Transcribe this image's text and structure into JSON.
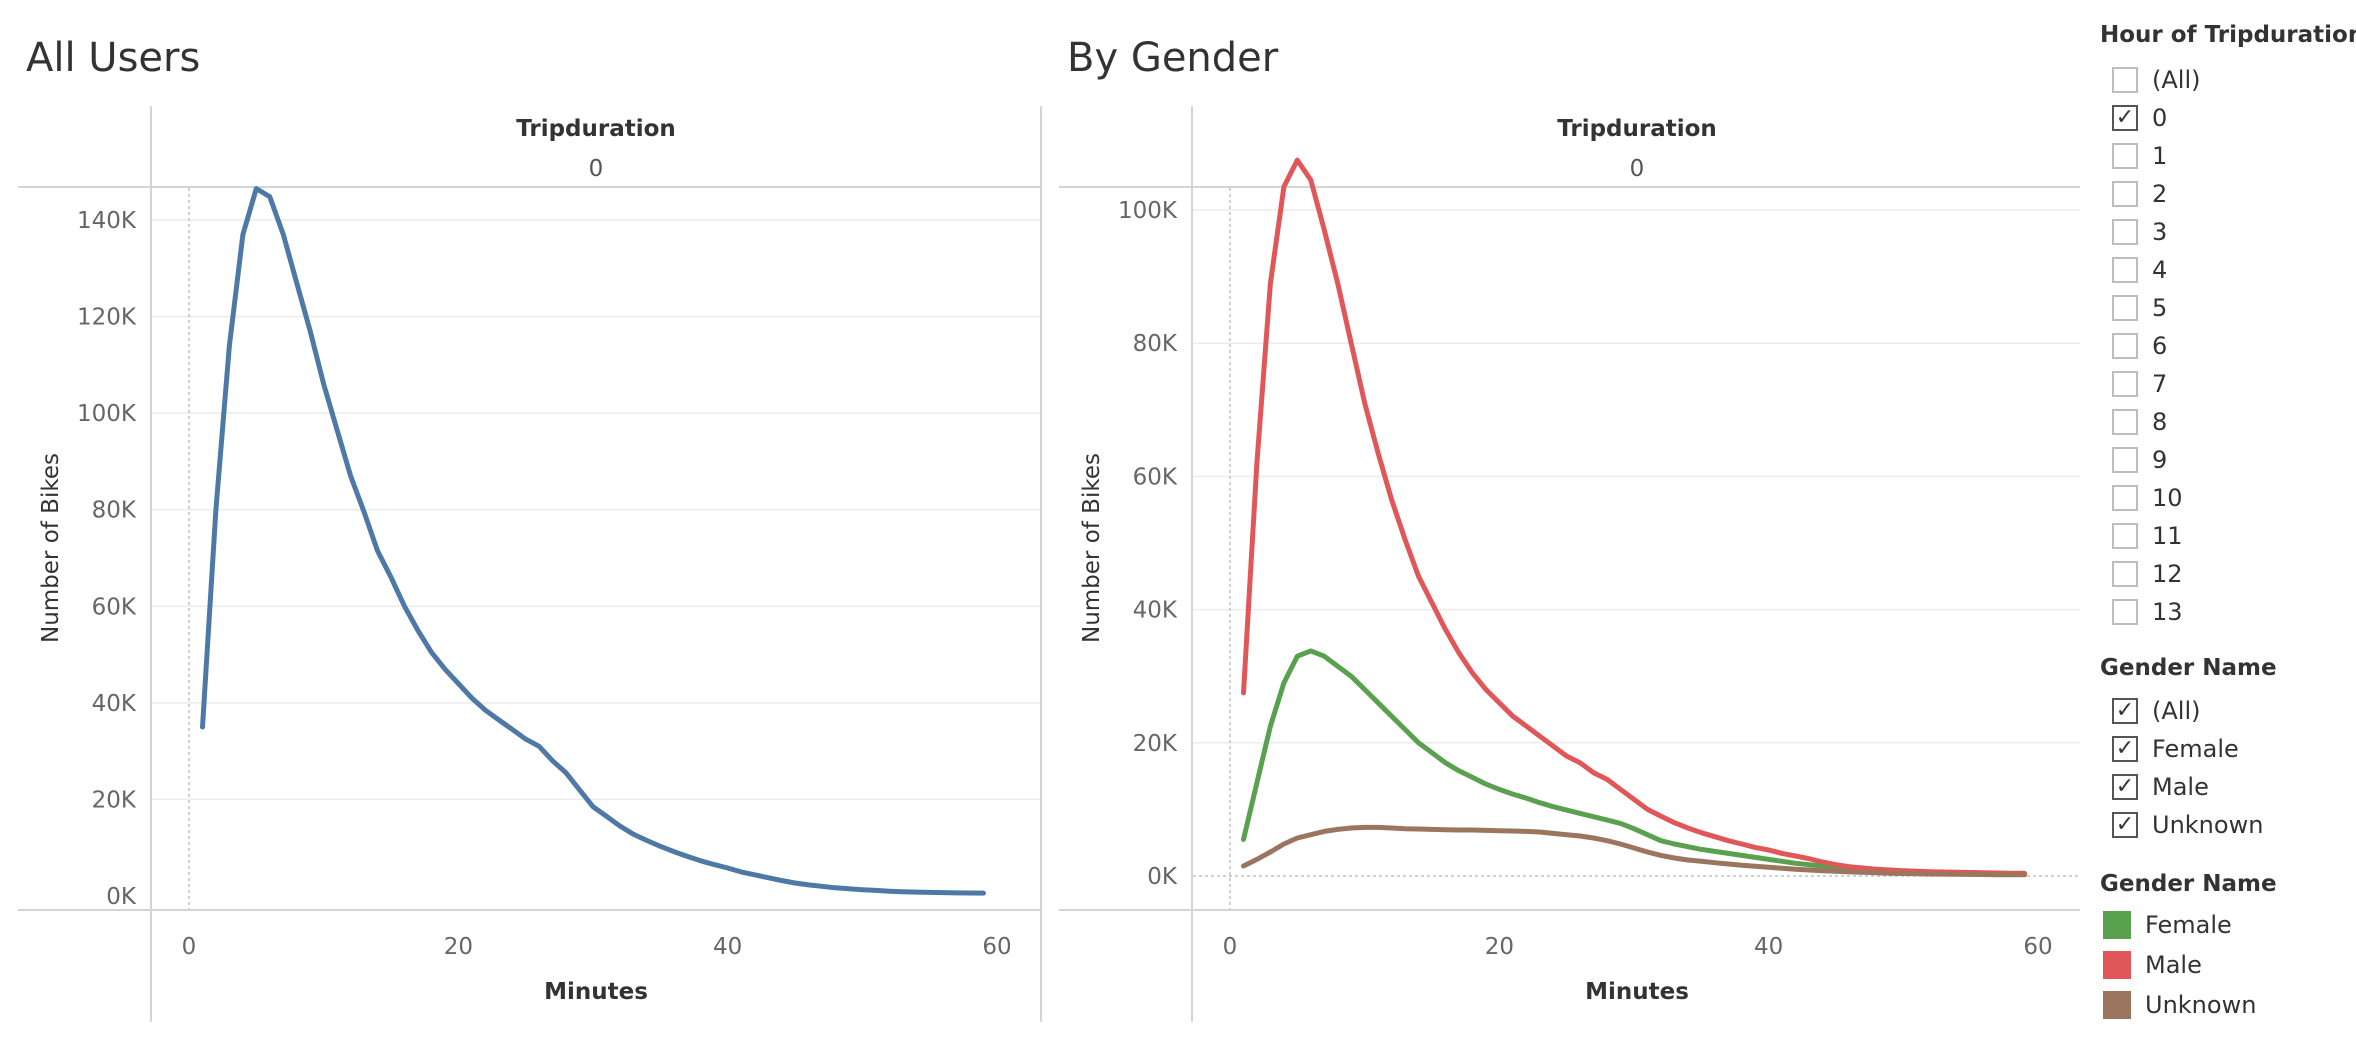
{
  "chart_data": [
    {
      "type": "line",
      "title": "All Users",
      "column_header": "Tripduration",
      "column_value": "0",
      "xlabel": "Minutes",
      "ylabel": "Number of Bikes",
      "xlim": [
        0,
        60
      ],
      "ylim": [
        0,
        150000
      ],
      "x_ticks": [
        0,
        20,
        40,
        60
      ],
      "x_tick_labels": [
        "0",
        "20",
        "40",
        "60"
      ],
      "y_ticks": [
        0,
        20000,
        40000,
        60000,
        80000,
        100000,
        120000,
        140000
      ],
      "y_tick_labels": [
        "0K",
        "20K",
        "40K",
        "60K",
        "80K",
        "100K",
        "120K",
        "140K"
      ],
      "grid": true,
      "series": [
        {
          "color": "#4E79A7",
          "x": [
            1,
            2,
            3,
            4,
            5,
            6,
            7,
            8,
            9,
            10,
            11,
            12,
            13,
            14,
            15,
            16,
            17,
            18,
            19,
            20,
            21,
            22,
            23,
            24,
            25,
            26,
            27,
            28,
            29,
            30,
            31,
            32,
            33,
            34,
            35,
            36,
            37,
            38,
            39,
            40,
            41,
            42,
            43,
            44,
            45,
            46,
            47,
            48,
            49,
            50,
            51,
            52,
            53,
            54,
            55,
            56,
            57,
            58,
            59
          ],
          "y": [
            35000,
            80000,
            114000,
            137000,
            146500,
            144800,
            137000,
            127000,
            117000,
            106000,
            96500,
            87000,
            79500,
            71500,
            66000,
            60000,
            55000,
            50500,
            47000,
            44000,
            41000,
            38500,
            36500,
            34500,
            32500,
            31000,
            28000,
            25500,
            22000,
            18500,
            16500,
            14500,
            12800,
            11500,
            10300,
            9200,
            8200,
            7300,
            6500,
            5800,
            5000,
            4400,
            3800,
            3200,
            2700,
            2300,
            2000,
            1700,
            1500,
            1300,
            1150,
            1000,
            900,
            800,
            750,
            700,
            650,
            620,
            600
          ]
        }
      ]
    },
    {
      "type": "line",
      "title": "By Gender",
      "column_header": "Tripduration",
      "column_value": "0",
      "xlabel": "Minutes",
      "ylabel": "Number of Bikes",
      "xlim": [
        0,
        60
      ],
      "ylim": [
        0,
        110000
      ],
      "x_ticks": [
        0,
        20,
        40,
        60
      ],
      "x_tick_labels": [
        "0",
        "20",
        "40",
        "60"
      ],
      "y_ticks": [
        0,
        20000,
        40000,
        60000,
        80000,
        100000
      ],
      "y_tick_labels": [
        "0K",
        "20K",
        "40K",
        "60K",
        "80K",
        "100K"
      ],
      "grid": true,
      "legend": "right",
      "series": [
        {
          "name": "Female",
          "color": "#59A14F",
          "x": [
            1,
            2,
            3,
            4,
            5,
            6,
            7,
            8,
            9,
            10,
            11,
            12,
            13,
            14,
            15,
            16,
            17,
            18,
            19,
            20,
            21,
            22,
            23,
            24,
            25,
            26,
            27,
            28,
            29,
            30,
            31,
            32,
            33,
            34,
            35,
            36,
            37,
            38,
            39,
            40,
            41,
            42,
            43,
            44,
            45,
            46,
            47,
            48,
            49,
            50,
            51,
            52,
            53,
            54,
            55,
            56,
            57,
            58,
            59
          ],
          "y": [
            5500,
            14000,
            22500,
            29000,
            33000,
            33800,
            33000,
            31500,
            30000,
            28000,
            26000,
            24000,
            22000,
            20000,
            18500,
            17000,
            15800,
            14800,
            13800,
            13000,
            12300,
            11700,
            11000,
            10400,
            9900,
            9400,
            8900,
            8400,
            7900,
            7100,
            6200,
            5300,
            4800,
            4400,
            4000,
            3700,
            3400,
            3100,
            2800,
            2500,
            2200,
            1900,
            1700,
            1500,
            1300,
            1150,
            1000,
            900,
            800,
            700,
            620,
            560,
            500,
            460,
            420,
            390,
            360,
            340,
            320
          ]
        },
        {
          "name": "Male",
          "color": "#E15759",
          "x": [
            1,
            2,
            3,
            4,
            5,
            6,
            7,
            8,
            9,
            10,
            11,
            12,
            13,
            14,
            15,
            16,
            17,
            18,
            19,
            20,
            21,
            22,
            23,
            24,
            25,
            26,
            27,
            28,
            29,
            30,
            31,
            32,
            33,
            34,
            35,
            36,
            37,
            38,
            39,
            40,
            41,
            42,
            43,
            44,
            45,
            46,
            47,
            48,
            49,
            50,
            51,
            52,
            53,
            54,
            55,
            56,
            57,
            58,
            59
          ],
          "y": [
            27500,
            62000,
            89000,
            103500,
            107500,
            104500,
            97000,
            89000,
            80000,
            71000,
            63500,
            56500,
            50500,
            45000,
            41000,
            37000,
            33500,
            30500,
            28000,
            26000,
            24000,
            22500,
            21000,
            19500,
            18000,
            17000,
            15500,
            14500,
            13000,
            11500,
            10000,
            9000,
            8000,
            7200,
            6500,
            5900,
            5300,
            4800,
            4300,
            3900,
            3400,
            3000,
            2600,
            2100,
            1700,
            1400,
            1200,
            1000,
            900,
            800,
            720,
            650,
            600,
            560,
            520,
            480,
            450,
            420,
            400
          ]
        },
        {
          "name": "Unknown",
          "color": "#9C755F",
          "x": [
            1,
            2,
            3,
            4,
            5,
            6,
            7,
            8,
            9,
            10,
            11,
            12,
            13,
            14,
            15,
            16,
            17,
            18,
            19,
            20,
            21,
            22,
            23,
            24,
            25,
            26,
            27,
            28,
            29,
            30,
            31,
            32,
            33,
            34,
            35,
            36,
            37,
            38,
            39,
            40,
            41,
            42,
            43,
            44,
            45,
            46,
            47,
            48,
            49,
            50,
            51,
            52,
            53,
            54,
            55,
            56,
            57,
            58,
            59
          ],
          "y": [
            1500,
            2500,
            3600,
            4800,
            5700,
            6200,
            6700,
            7000,
            7200,
            7300,
            7300,
            7200,
            7100,
            7050,
            7000,
            6950,
            6900,
            6900,
            6850,
            6800,
            6750,
            6700,
            6600,
            6400,
            6200,
            6000,
            5700,
            5300,
            4800,
            4200,
            3600,
            3100,
            2700,
            2400,
            2200,
            2000,
            1800,
            1600,
            1450,
            1300,
            1150,
            1000,
            900,
            800,
            700,
            620,
            550,
            480,
            420,
            380,
            340,
            300,
            280,
            260,
            240,
            220,
            200,
            190,
            180
          ]
        }
      ]
    }
  ],
  "filters": {
    "hour": {
      "title": "Hour of Tripduration",
      "options": [
        {
          "label": "(All)",
          "checked": false
        },
        {
          "label": "0",
          "checked": true
        },
        {
          "label": "1",
          "checked": false
        },
        {
          "label": "2",
          "checked": false
        },
        {
          "label": "3",
          "checked": false
        },
        {
          "label": "4",
          "checked": false
        },
        {
          "label": "5",
          "checked": false
        },
        {
          "label": "6",
          "checked": false
        },
        {
          "label": "7",
          "checked": false
        },
        {
          "label": "8",
          "checked": false
        },
        {
          "label": "9",
          "checked": false
        },
        {
          "label": "10",
          "checked": false
        },
        {
          "label": "11",
          "checked": false
        },
        {
          "label": "12",
          "checked": false
        },
        {
          "label": "13",
          "checked": false
        }
      ]
    },
    "gender": {
      "title": "Gender Name",
      "options": [
        {
          "label": "(All)",
          "checked": true
        },
        {
          "label": "Female",
          "checked": true
        },
        {
          "label": "Male",
          "checked": true
        },
        {
          "label": "Unknown",
          "checked": true
        }
      ]
    }
  },
  "legend": {
    "title": "Gender Name",
    "items": [
      {
        "label": "Female",
        "color": "#59A14F"
      },
      {
        "label": "Male",
        "color": "#E15759"
      },
      {
        "label": "Unknown",
        "color": "#9C755F"
      }
    ]
  },
  "check_glyph": "✓"
}
